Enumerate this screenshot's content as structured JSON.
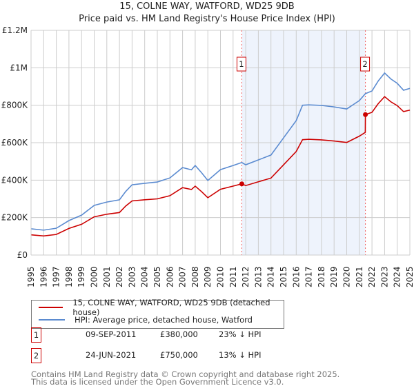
{
  "title": "15, COLNE WAY, WATFORD, WD25 9DB",
  "subtitle": "Price paid vs. HM Land Registry's House Price Index (HPI)",
  "chart_data": {
    "type": "line",
    "title": "15, COLNE WAY, WATFORD, WD25 9DB",
    "subtitle": "Price paid vs. HM Land Registry's House Price Index (HPI)",
    "xlim": [
      1995,
      2025
    ],
    "ylim": [
      0,
      1200000
    ],
    "x_ticks": [
      "1995",
      "1996",
      "1997",
      "1998",
      "1999",
      "2000",
      "2001",
      "2002",
      "2003",
      "2004",
      "2005",
      "2006",
      "2007",
      "2008",
      "2009",
      "2010",
      "2011",
      "2012",
      "2013",
      "2014",
      "2015",
      "2016",
      "2017",
      "2018",
      "2019",
      "2020",
      "2021",
      "2022",
      "2023",
      "2024",
      "2025"
    ],
    "y_ticks": [
      {
        "v": 0,
        "label": "£0"
      },
      {
        "v": 200000,
        "label": "£200K"
      },
      {
        "v": 400000,
        "label": "£400K"
      },
      {
        "v": 600000,
        "label": "£600K"
      },
      {
        "v": 800000,
        "label": "£800K"
      },
      {
        "v": 1000000,
        "label": "£1M"
      },
      {
        "v": 1200000,
        "label": "£1.2M"
      }
    ],
    "grid": true,
    "shaded_range": [
      2011.69,
      2021.48
    ],
    "series": [
      {
        "name": "15, COLNE WAY, WATFORD, WD25 9DB (detached house)",
        "color": "#cc0000",
        "x": [
          1995,
          1996,
          1997,
          1998,
          1999,
          2000,
          2001,
          2002,
          2002.5,
          2003,
          2004,
          2005,
          2006,
          2007,
          2007.7,
          2008,
          2008.5,
          2009,
          2010,
          2011,
          2011.69,
          2012,
          2013,
          2014,
          2015,
          2016,
          2016.5,
          2017,
          2018,
          2019,
          2020,
          2021,
          2021.47,
          2021.48,
          2022,
          2022.5,
          2023,
          2023.5,
          2024,
          2024.5,
          2025
        ],
        "y": [
          108000,
          102000,
          110000,
          142000,
          164000,
          204000,
          218000,
          227000,
          262000,
          289000,
          295000,
          300000,
          317000,
          360000,
          350000,
          368000,
          339000,
          306000,
          351000,
          368000,
          380000,
          371000,
          391000,
          411000,
          482000,
          553000,
          616000,
          618000,
          615000,
          609000,
          601000,
          635000,
          655000,
          750000,
          762000,
          809000,
          846000,
          818000,
          798000,
          766000,
          774000
        ]
      },
      {
        "name": "HPI: Average price, detached house, Watford",
        "color": "#5b8bd0",
        "x": [
          1995,
          1996,
          1997,
          1998,
          1999,
          2000,
          2001,
          2002,
          2002.5,
          2003,
          2004,
          2005,
          2006,
          2007,
          2007.7,
          2008,
          2008.5,
          2009,
          2010,
          2011,
          2011.69,
          2012,
          2013,
          2014,
          2015,
          2016,
          2016.5,
          2017,
          2018,
          2019,
          2020,
          2021,
          2021.48,
          2022,
          2022.5,
          2023,
          2023.5,
          2024,
          2024.5,
          2025
        ],
        "y": [
          140000,
          133000,
          143000,
          184000,
          213000,
          265000,
          283000,
          295000,
          340000,
          375000,
          383000,
          390000,
          412000,
          467000,
          455000,
          478000,
          440000,
          398000,
          456000,
          478000,
          494000,
          482000,
          508000,
          534000,
          626000,
          718000,
          800000,
          802000,
          799000,
          791000,
          780000,
          825000,
          862000,
          876000,
          930000,
          972000,
          940000,
          917000,
          880000,
          890000
        ]
      }
    ],
    "sales": [
      {
        "label": "1",
        "x": 2011.69,
        "y": 380000
      },
      {
        "label": "2",
        "x": 2021.48,
        "y": 750000
      }
    ]
  },
  "legend": [
    {
      "label": "15, COLNE WAY, WATFORD, WD25 9DB (detached house)",
      "color": "#cc0000"
    },
    {
      "label": "HPI: Average price, detached house, Watford",
      "color": "#5b8bd0"
    }
  ],
  "transactions": [
    {
      "num": "1",
      "date": "09-SEP-2011",
      "price": "£380,000",
      "hpi": "23% ↓ HPI"
    },
    {
      "num": "2",
      "date": "24-JUN-2021",
      "price": "£750,000",
      "hpi": "13% ↓ HPI"
    }
  ],
  "footer": [
    "Contains HM Land Registry data © Crown copyright and database right 2025.",
    "This data is licensed under the Open Government Licence v3.0."
  ]
}
